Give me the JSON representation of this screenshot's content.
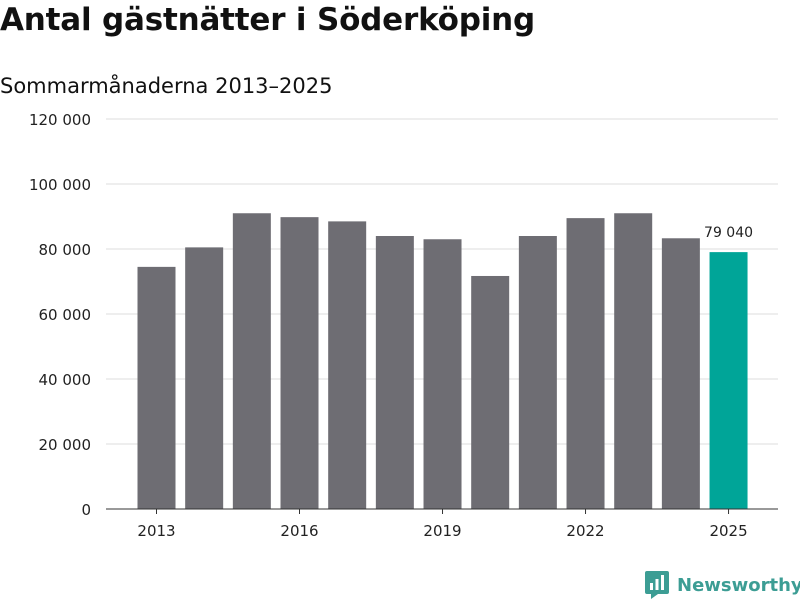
{
  "title": "Antal gästnätter i Söderköping",
  "subtitle": "Sommarmånaderna 2013–2025",
  "brand": "Newsworthy",
  "colors": {
    "bar": "#6e6d73",
    "highlight": "#00a598",
    "grid": "#dddddd",
    "brand": "#3c9d94"
  },
  "chart_data": {
    "type": "bar",
    "x": [
      2013,
      2014,
      2015,
      2016,
      2017,
      2018,
      2019,
      2020,
      2021,
      2022,
      2023,
      2024,
      2025
    ],
    "values": [
      74500,
      80500,
      91000,
      89800,
      88500,
      84000,
      83000,
      71700,
      84000,
      89500,
      91000,
      83300,
      79040
    ],
    "highlight_index": 12,
    "data_labels": [
      {
        "index": 12,
        "text": "79 040"
      }
    ],
    "ylim": [
      0,
      120000
    ],
    "yticks": [
      0,
      20000,
      40000,
      60000,
      80000,
      100000,
      120000
    ],
    "ytick_labels": [
      "0",
      "20 000",
      "40 000",
      "60 000",
      "80 000",
      "100 000",
      "120 000"
    ],
    "xtick_labels": [
      "2013",
      "2016",
      "2019",
      "2022",
      "2025"
    ],
    "xtick_years": [
      2013,
      2016,
      2019,
      2022,
      2025
    ],
    "grid": true,
    "xlabel": "",
    "ylabel": ""
  }
}
